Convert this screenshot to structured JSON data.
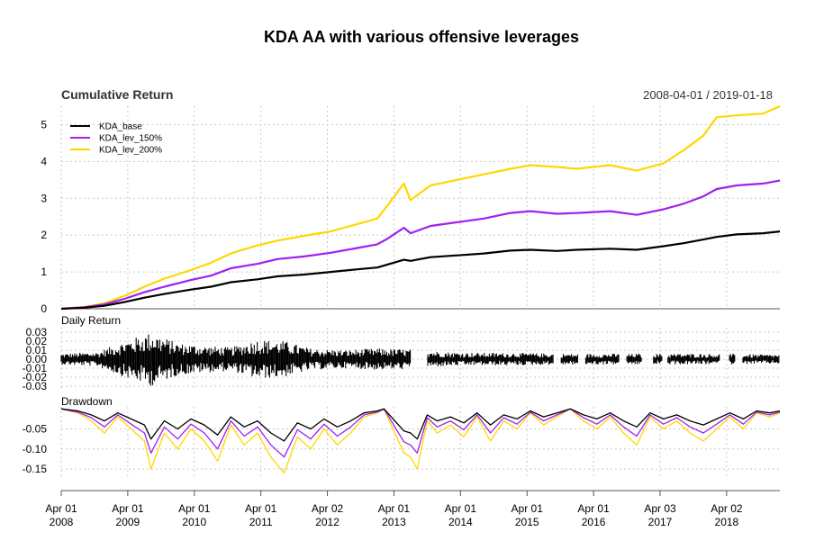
{
  "chart_data": {
    "type": "line",
    "title": "KDA AA with various offensive leverages",
    "date_range": "2008-04-01 / 2019-01-18",
    "x_tick_labels": [
      {
        "date": 2008.25,
        "line1": "Apr 01",
        "line2": "2008"
      },
      {
        "date": 2009.25,
        "line1": "Apr 01",
        "line2": "2009"
      },
      {
        "date": 2010.25,
        "line1": "Apr 01",
        "line2": "2010"
      },
      {
        "date": 2011.25,
        "line1": "Apr 01",
        "line2": "2011"
      },
      {
        "date": 2012.25,
        "line1": "Apr 02",
        "line2": "2012"
      },
      {
        "date": 2013.25,
        "line1": "Apr 01",
        "line2": "2013"
      },
      {
        "date": 2014.25,
        "line1": "Apr 01",
        "line2": "2014"
      },
      {
        "date": 2015.25,
        "line1": "Apr 01",
        "line2": "2015"
      },
      {
        "date": 2016.25,
        "line1": "Apr 01",
        "line2": "2016"
      },
      {
        "date": 2017.25,
        "line1": "Apr 03",
        "line2": "2017"
      },
      {
        "date": 2018.25,
        "line1": "Apr 02",
        "line2": "2018"
      }
    ],
    "x_range": [
      2008.25,
      2019.05
    ],
    "legend": {
      "placement": "top-left",
      "entries": [
        {
          "name": "KDA_base",
          "color": "#000000"
        },
        {
          "name": "KDA_lev_150%",
          "color": "#a020f0"
        },
        {
          "name": "KDA_lev_200%",
          "color": "#ffd700"
        }
      ]
    },
    "panels": [
      {
        "id": "cumulative",
        "label": "Cumulative Return",
        "ylim": [
          0,
          5.5
        ],
        "y_ticks": [
          0,
          1,
          2,
          3,
          4,
          5
        ],
        "y_tick_labels": [
          "0",
          "1",
          "2",
          "3",
          "4",
          "5"
        ],
        "series": [
          {
            "name": "KDA_base",
            "color": "#000000",
            "x": [
              2008.25,
              2008.6,
              2008.9,
              2009.2,
              2009.5,
              2009.8,
              2010.2,
              2010.5,
              2010.8,
              2011.2,
              2011.5,
              2011.9,
              2012.3,
              2012.7,
              2013.0,
              2013.15,
              2013.4,
              2013.5,
              2013.8,
              2014.2,
              2014.6,
              2015.0,
              2015.3,
              2015.7,
              2016.0,
              2016.5,
              2016.9,
              2017.3,
              2017.6,
              2017.9,
              2018.1,
              2018.4,
              2018.8,
              2019.05
            ],
            "y": [
              0.0,
              0.03,
              0.08,
              0.18,
              0.3,
              0.4,
              0.52,
              0.6,
              0.72,
              0.8,
              0.88,
              0.93,
              1.0,
              1.07,
              1.12,
              1.2,
              1.33,
              1.3,
              1.4,
              1.45,
              1.5,
              1.58,
              1.6,
              1.57,
              1.6,
              1.63,
              1.6,
              1.7,
              1.78,
              1.88,
              1.95,
              2.02,
              2.05,
              2.1
            ]
          },
          {
            "name": "KDA_lev_150%",
            "color": "#a020f0",
            "x": [
              2008.25,
              2008.6,
              2008.9,
              2009.2,
              2009.5,
              2009.8,
              2010.2,
              2010.5,
              2010.8,
              2011.2,
              2011.5,
              2011.9,
              2012.3,
              2012.7,
              2013.0,
              2013.15,
              2013.4,
              2013.5,
              2013.8,
              2014.2,
              2014.6,
              2015.0,
              2015.3,
              2015.7,
              2016.0,
              2016.5,
              2016.9,
              2017.3,
              2017.6,
              2017.9,
              2018.1,
              2018.4,
              2018.8,
              2019.05
            ],
            "y": [
              0.0,
              0.04,
              0.12,
              0.27,
              0.45,
              0.6,
              0.78,
              0.9,
              1.1,
              1.22,
              1.35,
              1.42,
              1.52,
              1.65,
              1.75,
              1.9,
              2.2,
              2.05,
              2.25,
              2.35,
              2.45,
              2.6,
              2.65,
              2.58,
              2.6,
              2.65,
              2.55,
              2.7,
              2.85,
              3.05,
              3.25,
              3.35,
              3.4,
              3.48
            ]
          },
          {
            "name": "KDA_lev_200%",
            "color": "#ffd700",
            "x": [
              2008.25,
              2008.6,
              2008.9,
              2009.2,
              2009.5,
              2009.8,
              2010.2,
              2010.5,
              2010.8,
              2011.2,
              2011.5,
              2011.9,
              2012.3,
              2012.7,
              2013.0,
              2013.15,
              2013.4,
              2013.5,
              2013.8,
              2014.2,
              2014.6,
              2015.0,
              2015.3,
              2015.7,
              2016.0,
              2016.5,
              2016.9,
              2017.3,
              2017.6,
              2017.9,
              2018.1,
              2018.4,
              2018.8,
              2019.05
            ],
            "y": [
              0.0,
              0.05,
              0.15,
              0.35,
              0.6,
              0.82,
              1.05,
              1.25,
              1.5,
              1.72,
              1.85,
              1.98,
              2.1,
              2.3,
              2.45,
              2.8,
              3.4,
              2.95,
              3.35,
              3.5,
              3.65,
              3.8,
              3.9,
              3.85,
              3.8,
              3.9,
              3.75,
              3.95,
              4.3,
              4.7,
              5.2,
              5.25,
              5.3,
              5.5
            ]
          }
        ]
      },
      {
        "id": "daily",
        "label": "Daily Return",
        "ylim": [
          -0.035,
          0.035
        ],
        "y_ticks": [
          0.03,
          0.02,
          0.01,
          0.0,
          -0.01,
          -0.02,
          -0.03
        ],
        "y_tick_labels": [
          "0.03",
          "0.02",
          "0.01",
          "0.00",
          "-0.01",
          "-0.02",
          "-0.03"
        ],
        "volatility_profile": {
          "x": [
            2008.25,
            2008.8,
            2009.2,
            2009.6,
            2010.0,
            2010.4,
            2010.8,
            2011.2,
            2011.6,
            2012.0,
            2012.5,
            2013.0,
            2013.5,
            2014.0,
            2014.5,
            2015.0,
            2016.0,
            2017.0,
            2018.0,
            2019.05
          ],
          "amplitude": [
            0.006,
            0.008,
            0.02,
            0.03,
            0.018,
            0.015,
            0.013,
            0.022,
            0.02,
            0.012,
            0.01,
            0.012,
            0.011,
            0.008,
            0.007,
            0.007,
            0.006,
            0.006,
            0.006,
            0.005
          ]
        },
        "gaps": [
          [
            2013.5,
            2013.75
          ],
          [
            2015.65,
            2015.75
          ],
          [
            2016.02,
            2016.12
          ],
          [
            2016.63,
            2016.75
          ],
          [
            2016.98,
            2017.15
          ],
          [
            2017.28,
            2017.36
          ],
          [
            2018.15,
            2018.28
          ],
          [
            2018.38,
            2018.48
          ]
        ]
      },
      {
        "id": "drawdown",
        "label": "Drawdown",
        "ylim": [
          -0.17,
          0.005
        ],
        "y_ticks": [
          -0.05,
          -0.1,
          -0.15
        ],
        "y_tick_labels": [
          "-0.05",
          "-0.10",
          "-0.15"
        ],
        "series": [
          {
            "name": "KDA_lev_200%",
            "color": "#ffd700",
            "x": [
              2008.25,
              2008.5,
              2008.7,
              2008.9,
              2009.1,
              2009.3,
              2009.5,
              2009.6,
              2009.8,
              2010.0,
              2010.2,
              2010.4,
              2010.6,
              2010.8,
              2011.0,
              2011.2,
              2011.4,
              2011.6,
              2011.8,
              2012.0,
              2012.2,
              2012.4,
              2012.6,
              2012.8,
              2013.0,
              2013.1,
              2013.4,
              2013.5,
              2013.6,
              2013.75,
              2013.9,
              2014.1,
              2014.3,
              2014.5,
              2014.7,
              2014.9,
              2015.1,
              2015.3,
              2015.5,
              2015.7,
              2015.9,
              2016.1,
              2016.3,
              2016.5,
              2016.7,
              2016.9,
              2017.1,
              2017.3,
              2017.5,
              2017.7,
              2017.9,
              2018.1,
              2018.3,
              2018.5,
              2018.7,
              2018.9,
              2019.05
            ],
            "y": [
              0.0,
              -0.01,
              -0.03,
              -0.06,
              -0.02,
              -0.05,
              -0.08,
              -0.15,
              -0.06,
              -0.1,
              -0.05,
              -0.08,
              -0.13,
              -0.04,
              -0.09,
              -0.06,
              -0.12,
              -0.16,
              -0.07,
              -0.1,
              -0.05,
              -0.09,
              -0.06,
              -0.02,
              -0.01,
              0.0,
              -0.11,
              -0.12,
              -0.15,
              -0.03,
              -0.06,
              -0.04,
              -0.07,
              -0.02,
              -0.08,
              -0.03,
              -0.05,
              -0.01,
              -0.04,
              -0.02,
              0.0,
              -0.03,
              -0.05,
              -0.02,
              -0.06,
              -0.09,
              -0.02,
              -0.05,
              -0.03,
              -0.06,
              -0.08,
              -0.05,
              -0.02,
              -0.05,
              -0.01,
              -0.02,
              -0.01
            ]
          },
          {
            "name": "KDA_lev_150%",
            "color": "#a020f0",
            "x": [
              2008.25,
              2008.5,
              2008.7,
              2008.9,
              2009.1,
              2009.3,
              2009.5,
              2009.6,
              2009.8,
              2010.0,
              2010.2,
              2010.4,
              2010.6,
              2010.8,
              2011.0,
              2011.2,
              2011.4,
              2011.6,
              2011.8,
              2012.0,
              2012.2,
              2012.4,
              2012.6,
              2012.8,
              2013.0,
              2013.1,
              2013.4,
              2013.5,
              2013.6,
              2013.75,
              2013.9,
              2014.1,
              2014.3,
              2014.5,
              2014.7,
              2014.9,
              2015.1,
              2015.3,
              2015.5,
              2015.7,
              2015.9,
              2016.1,
              2016.3,
              2016.5,
              2016.7,
              2016.9,
              2017.1,
              2017.3,
              2017.5,
              2017.7,
              2017.9,
              2018.1,
              2018.3,
              2018.5,
              2018.7,
              2018.9,
              2019.05
            ],
            "y": [
              0.0,
              -0.008,
              -0.022,
              -0.045,
              -0.015,
              -0.038,
              -0.06,
              -0.11,
              -0.045,
              -0.075,
              -0.038,
              -0.06,
              -0.1,
              -0.03,
              -0.068,
              -0.045,
              -0.09,
              -0.12,
              -0.052,
              -0.075,
              -0.038,
              -0.068,
              -0.045,
              -0.015,
              -0.008,
              0.0,
              -0.082,
              -0.09,
              -0.11,
              -0.022,
              -0.045,
              -0.03,
              -0.052,
              -0.015,
              -0.06,
              -0.022,
              -0.038,
              -0.008,
              -0.03,
              -0.015,
              0.0,
              -0.022,
              -0.038,
              -0.015,
              -0.045,
              -0.068,
              -0.015,
              -0.038,
              -0.022,
              -0.045,
              -0.06,
              -0.038,
              -0.015,
              -0.038,
              -0.008,
              -0.015,
              -0.008
            ]
          },
          {
            "name": "KDA_base",
            "color": "#000000",
            "x": [
              2008.25,
              2008.5,
              2008.7,
              2008.9,
              2009.1,
              2009.3,
              2009.5,
              2009.6,
              2009.8,
              2010.0,
              2010.2,
              2010.4,
              2010.6,
              2010.8,
              2011.0,
              2011.2,
              2011.4,
              2011.6,
              2011.8,
              2012.0,
              2012.2,
              2012.4,
              2012.6,
              2012.8,
              2013.0,
              2013.1,
              2013.4,
              2013.5,
              2013.6,
              2013.75,
              2013.9,
              2014.1,
              2014.3,
              2014.5,
              2014.7,
              2014.9,
              2015.1,
              2015.3,
              2015.5,
              2015.7,
              2015.9,
              2016.1,
              2016.3,
              2016.5,
              2016.7,
              2016.9,
              2017.1,
              2017.3,
              2017.5,
              2017.7,
              2017.9,
              2018.1,
              2018.3,
              2018.5,
              2018.7,
              2018.9,
              2019.05
            ],
            "y": [
              0.0,
              -0.005,
              -0.015,
              -0.03,
              -0.01,
              -0.025,
              -0.04,
              -0.075,
              -0.03,
              -0.05,
              -0.025,
              -0.04,
              -0.065,
              -0.02,
              -0.045,
              -0.03,
              -0.06,
              -0.08,
              -0.035,
              -0.05,
              -0.025,
              -0.045,
              -0.03,
              -0.01,
              -0.005,
              0.0,
              -0.055,
              -0.06,
              -0.075,
              -0.015,
              -0.03,
              -0.02,
              -0.035,
              -0.01,
              -0.04,
              -0.015,
              -0.025,
              -0.005,
              -0.02,
              -0.01,
              0.0,
              -0.015,
              -0.025,
              -0.01,
              -0.03,
              -0.045,
              -0.01,
              -0.025,
              -0.015,
              -0.03,
              -0.04,
              -0.025,
              -0.01,
              -0.025,
              -0.005,
              -0.01,
              -0.005
            ]
          }
        ]
      }
    ]
  }
}
